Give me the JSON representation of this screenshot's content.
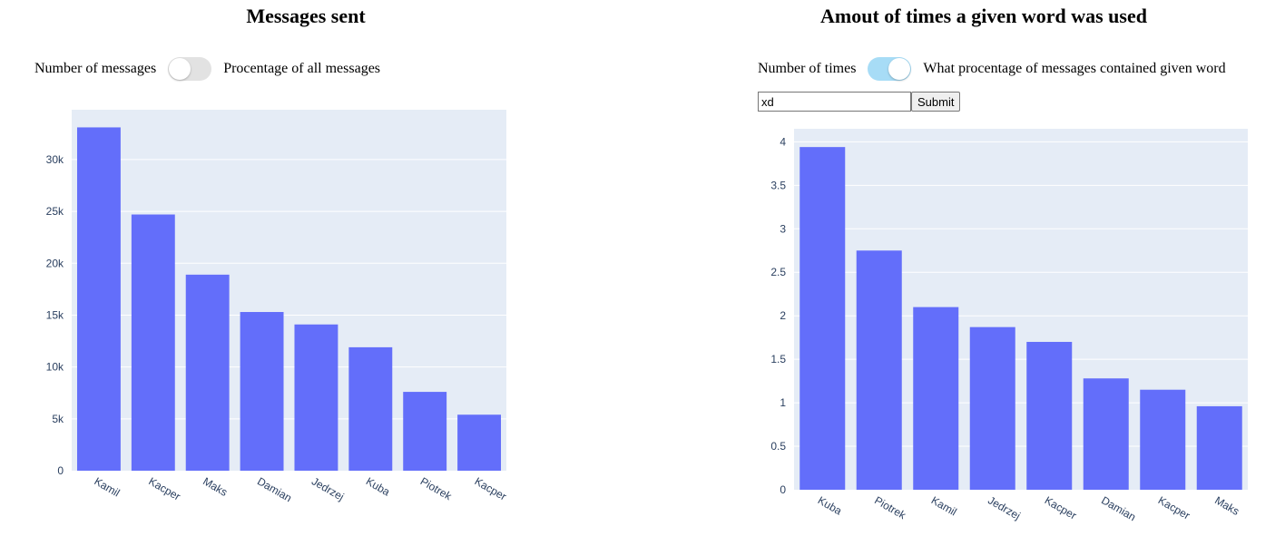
{
  "left": {
    "title": "Messages sent",
    "toggle": {
      "left_label": "Number of messages",
      "right_label": "Procentage of all messages",
      "state": "off"
    }
  },
  "right": {
    "title": "Amout of times a given word was used",
    "toggle": {
      "left_label": "Number of times",
      "right_label": "What procentage of messages contained given word",
      "state": "on"
    },
    "input": {
      "value": "xd",
      "placeholder": ""
    },
    "submit_label": "Submit"
  },
  "colors": {
    "bar": "#636efa",
    "plot_bg": "#e5ecf6",
    "grid": "#ffffff",
    "toggle_on": "#a7dcf6",
    "toggle_off": "#e2e2e2"
  },
  "chart_data": [
    {
      "type": "bar",
      "title": "Messages sent",
      "categories": [
        "Kamil",
        "Kacper",
        "Maks",
        "Damian",
        "Jedrzej",
        "Kuba",
        "Piotrek",
        "Kacper"
      ],
      "values": [
        33100,
        24700,
        18900,
        15300,
        14100,
        11900,
        7600,
        5400
      ],
      "ylim": [
        0,
        34800
      ],
      "yticks": [
        0,
        5000,
        10000,
        15000,
        20000,
        25000,
        30000
      ],
      "ytick_labels": [
        "0",
        "5k",
        "10k",
        "15k",
        "20k",
        "25k",
        "30k"
      ],
      "grid": true
    },
    {
      "type": "bar",
      "title": "Amout of times a given word was used",
      "categories": [
        "Kuba",
        "Piotrek",
        "Kamil",
        "Jedrzej",
        "Kacper",
        "Damian",
        "Kacper",
        "Maks"
      ],
      "values": [
        3.94,
        2.75,
        2.1,
        1.87,
        1.7,
        1.28,
        1.15,
        0.96
      ],
      "ylim": [
        0,
        4.15
      ],
      "yticks": [
        0,
        0.5,
        1,
        1.5,
        2,
        2.5,
        3,
        3.5,
        4
      ],
      "ytick_labels": [
        "0",
        "0.5",
        "1",
        "1.5",
        "2",
        "2.5",
        "3",
        "3.5",
        "4"
      ],
      "grid": true
    }
  ]
}
